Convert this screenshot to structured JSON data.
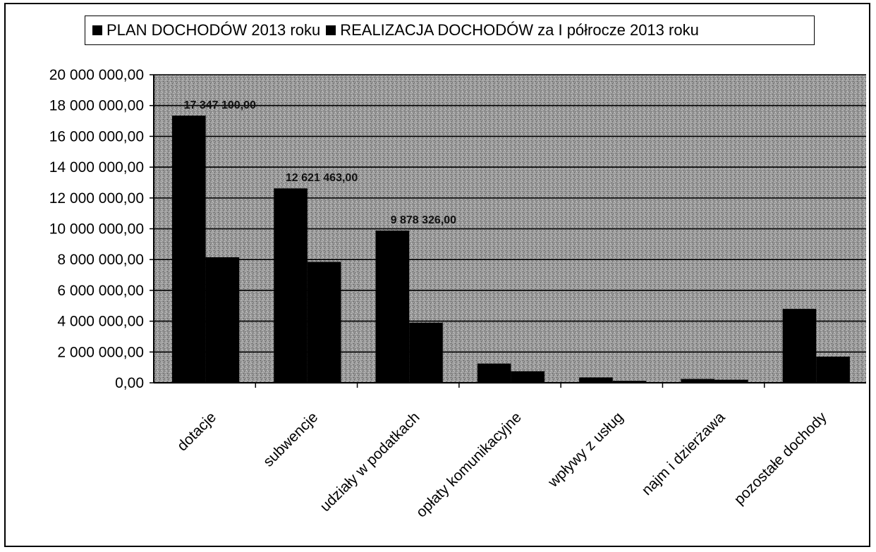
{
  "chart_data": {
    "type": "bar",
    "categories": [
      "dotacje",
      "subwencje",
      "udziały w podatkach",
      "opłaty komunikacyjne",
      "wpływy z usług",
      "najm i dzierżawa",
      "pozostałe dochody"
    ],
    "series": [
      {
        "name": "PLAN DOCHODÓW 2013 roku",
        "values": [
          17347100,
          12621463,
          9878326,
          1250000,
          350000,
          250000,
          4800000
        ],
        "labels": [
          "17 347 100,00",
          "12 621 463,00",
          "9 878 326,00",
          "",
          "",
          "",
          ""
        ]
      },
      {
        "name": "REALIZACJA DOCHODÓW za I półrocze 2013 roku",
        "values": [
          8150000,
          7850000,
          3900000,
          750000,
          130000,
          200000,
          1700000
        ],
        "labels": [
          "",
          "",
          "",
          "",
          "",
          "",
          ""
        ]
      }
    ],
    "legend": [
      "PLAN DOCHODÓW 2013 roku",
      "REALIZACJA DOCHODÓW za I półrocze 2013 roku"
    ],
    "legend_position": "top",
    "yticks": [
      "0,00",
      "2 000 000,00",
      "4 000 000,00",
      "6 000 000,00",
      "8 000 000,00",
      "10 000 000,00",
      "12 000 000,00",
      "14 000 000,00",
      "16 000 000,00",
      "18 000 000,00",
      "20 000 000,00"
    ],
    "ylim": [
      0,
      20000000
    ],
    "grid": true,
    "title": "",
    "xlabel": "",
    "ylabel": "",
    "colors": {
      "bars": "#000000",
      "plot_background": "#9a9a9a"
    }
  }
}
